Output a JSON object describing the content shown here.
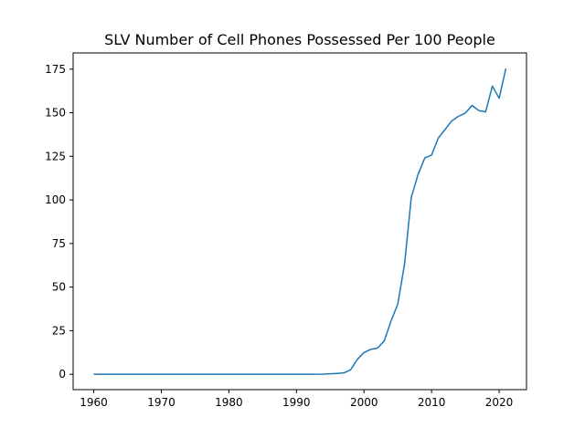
{
  "chart_data": {
    "type": "line",
    "title": "SLV Number of Cell Phones Possessed Per 100 People",
    "xlabel": "",
    "ylabel": "",
    "xlim": [
      1956.95,
      2024.05
    ],
    "ylim": [
      -8.8,
      184.3
    ],
    "x_ticks": [
      1960,
      1970,
      1980,
      1990,
      2000,
      2010,
      2020
    ],
    "y_ticks": [
      0,
      25,
      50,
      75,
      100,
      125,
      150,
      175
    ],
    "grid": false,
    "line_color": "#1f77b4",
    "series": [
      {
        "x": [
          1960,
          1961,
          1962,
          1963,
          1964,
          1965,
          1966,
          1967,
          1968,
          1969,
          1970,
          1971,
          1972,
          1973,
          1974,
          1975,
          1976,
          1977,
          1978,
          1979,
          1980,
          1981,
          1982,
          1983,
          1984,
          1985,
          1986,
          1987,
          1988,
          1989,
          1990,
          1991,
          1992,
          1993,
          1994,
          1995,
          1996,
          1997,
          1998,
          1999,
          2000,
          2001,
          2002,
          2003,
          2004,
          2005,
          2006,
          2007,
          2008,
          2009,
          2010,
          2011,
          2012,
          2013,
          2014,
          2015,
          2016,
          2017,
          2018,
          2019,
          2020,
          2021
        ],
        "y": [
          0,
          0,
          0,
          0,
          0,
          0,
          0,
          0,
          0,
          0,
          0,
          0,
          0,
          0,
          0,
          0,
          0,
          0,
          0,
          0,
          0,
          0,
          0,
          0,
          0,
          0,
          0,
          0,
          0,
          0,
          0,
          0,
          0,
          0,
          0.1,
          0.3,
          0.5,
          0.8,
          2.5,
          8.5,
          12.5,
          14.3,
          15,
          19.2,
          30.5,
          40.2,
          63.2,
          101.5,
          114.6,
          124.1,
          125.7,
          135.5,
          140.4,
          145.4,
          148,
          149.8,
          154.2,
          151.2,
          150.5,
          165.3,
          158.3,
          175.4
        ]
      }
    ]
  }
}
